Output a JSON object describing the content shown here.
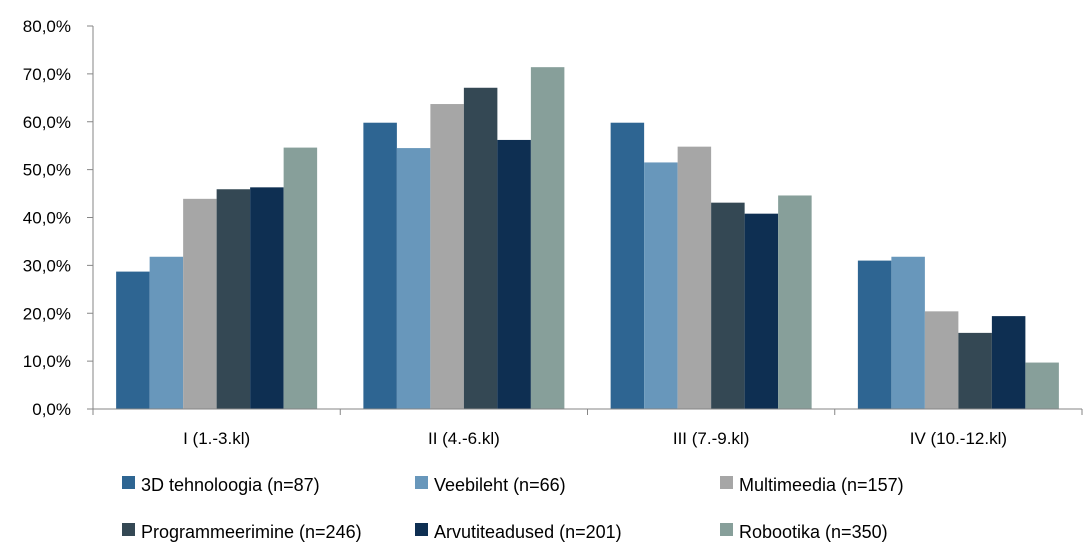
{
  "chart_data": {
    "type": "bar",
    "title": "",
    "xlabel": "",
    "ylabel": "",
    "ylim": [
      0,
      80
    ],
    "y_ticks": [
      "0,0%",
      "10,0%",
      "20,0%",
      "30,0%",
      "40,0%",
      "50,0%",
      "60,0%",
      "70,0%",
      "80,0%"
    ],
    "grid": false,
    "legend_position": "bottom",
    "categories": [
      "I (1.-3.kl)",
      "II (4.-6.kl)",
      "III (7.-9.kl)",
      "IV (10.-12.kl)"
    ],
    "series": [
      {
        "name": "3D tehnoloogia (n=87)",
        "color": "#2e6592",
        "values": [
          28.7,
          59.8,
          59.8,
          31.0
        ]
      },
      {
        "name": "Veebileht (n=66)",
        "color": "#6897bb",
        "values": [
          31.8,
          54.5,
          51.5,
          31.8
        ]
      },
      {
        "name": "Multimeedia (n=157)",
        "color": "#a6a6a6",
        "values": [
          43.9,
          63.7,
          54.8,
          20.4
        ]
      },
      {
        "name": "Programmeerimine (n=246)",
        "color": "#344854",
        "values": [
          45.9,
          67.1,
          43.1,
          15.9
        ]
      },
      {
        "name": "Arvutiteadused (n=201)",
        "color": "#0e2f52",
        "values": [
          46.3,
          56.2,
          40.8,
          19.4
        ]
      },
      {
        "name": "Robootika (n=350)",
        "color": "#879f9a",
        "values": [
          54.6,
          71.4,
          44.6,
          9.7
        ]
      }
    ]
  }
}
